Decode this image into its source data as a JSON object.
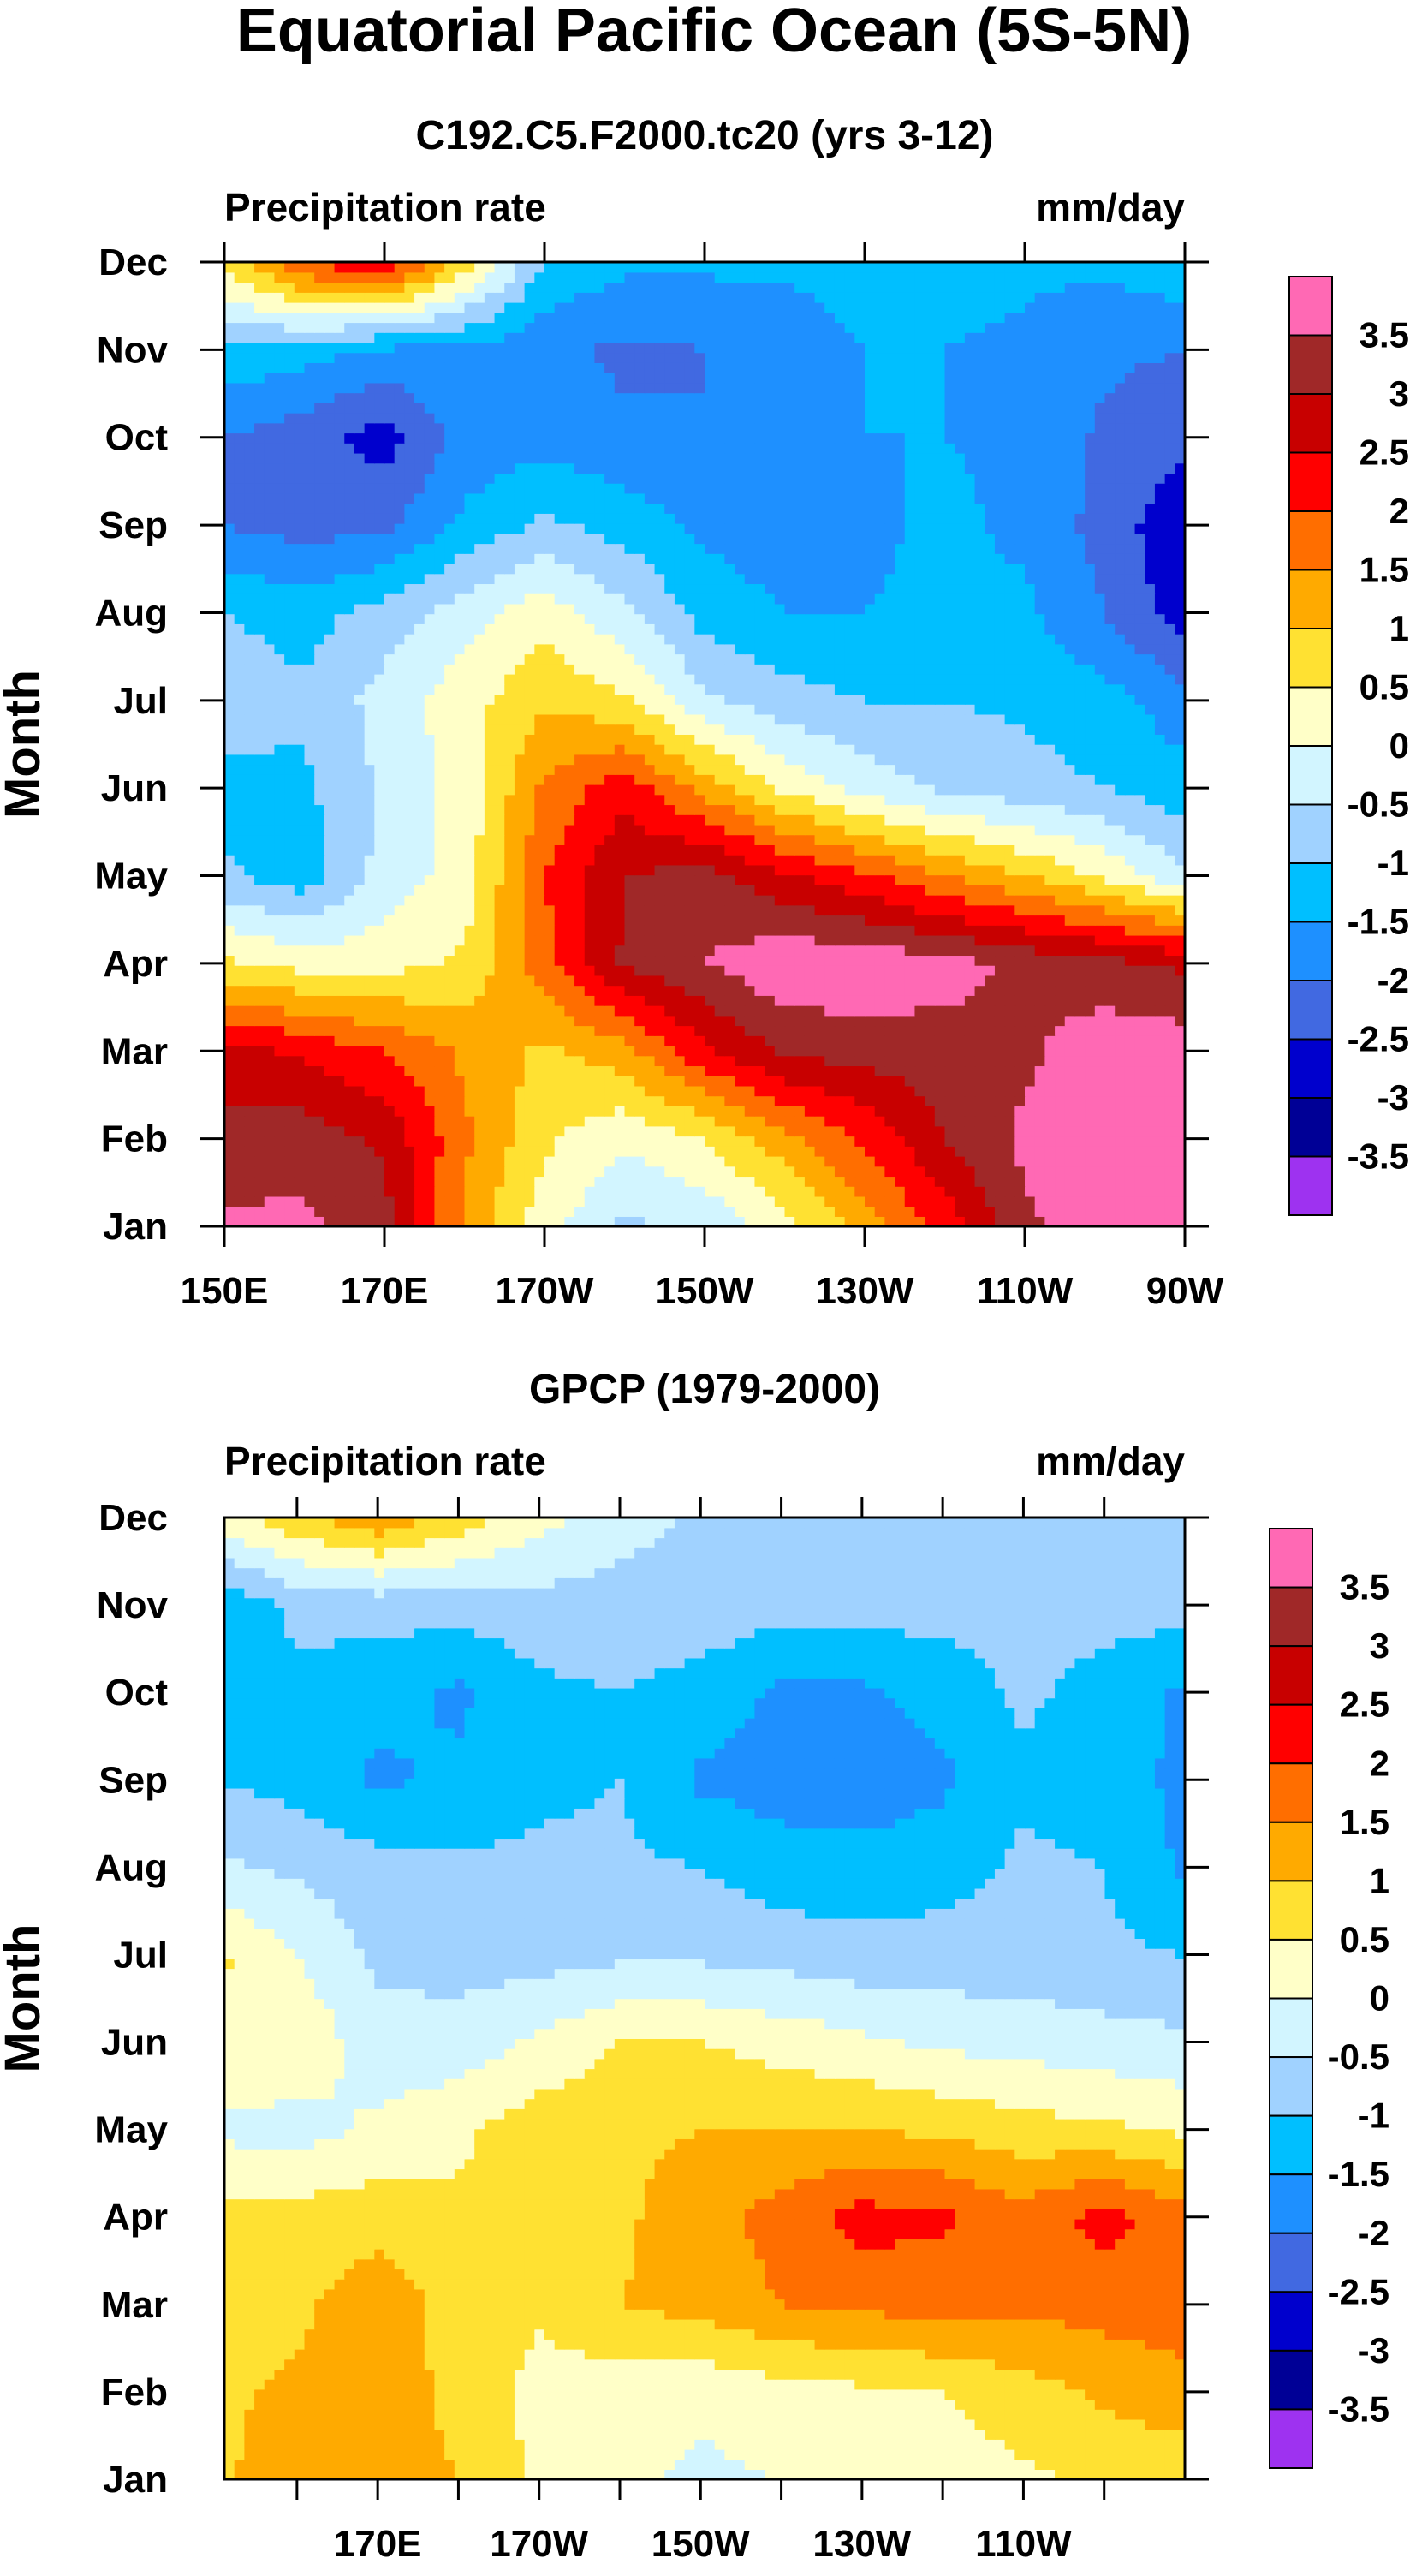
{
  "figure_title": "Equatorial Pacific Ocean (5S-5N)",
  "chart_data": [
    {
      "type": "heatmap",
      "title": "C192.C5.F2000.tc20 (yrs 3-12)",
      "left_label": "Precipitation rate",
      "right_label": "mm/day",
      "xlabel": "",
      "ylabel": "Month",
      "x_ticks": [
        "150E",
        "170E",
        "170W",
        "150W",
        "130W",
        "110W",
        "90W"
      ],
      "x_tick_values": [
        150,
        170,
        190,
        210,
        230,
        250,
        270
      ],
      "xlim": [
        150,
        270
      ],
      "y_ticks": [
        "Jan",
        "Feb",
        "Mar",
        "Apr",
        "May",
        "Jun",
        "Jul",
        "Aug",
        "Sep",
        "Oct",
        "Nov",
        "Dec"
      ],
      "colorbar_labels": [
        "3.5",
        "3",
        "2.5",
        "2",
        "1.5",
        "1",
        "0.5",
        "0",
        "-0.5",
        "-1",
        "-1.5",
        "-2",
        "-2.5",
        "-3",
        "-3.5"
      ],
      "x": [
        150,
        160,
        170,
        180,
        190,
        200,
        210,
        220,
        230,
        240,
        250,
        260,
        270
      ],
      "values": [
        [
          3.6,
          3.6,
          3.2,
          1.4,
          0.2,
          -0.6,
          -0.4,
          0.3,
          1.2,
          2.2,
          3.4,
          3.8,
          3.8
        ],
        [
          3.2,
          3.3,
          2.9,
          1.6,
          0.6,
          0.1,
          0.5,
          1.3,
          2.1,
          3.0,
          3.6,
          3.8,
          3.8
        ],
        [
          2.7,
          2.4,
          2.0,
          1.4,
          0.9,
          1.3,
          2.4,
          3.1,
          3.2,
          3.3,
          3.4,
          3.8,
          3.8
        ],
        [
          0.6,
          0.3,
          0.3,
          0.6,
          1.8,
          3.1,
          3.5,
          3.9,
          3.9,
          3.7,
          3.4,
          3.2,
          2.9
        ],
        [
          -0.9,
          -1.3,
          -0.3,
          0.2,
          2.0,
          3.0,
          3.2,
          2.6,
          2.1,
          1.5,
          1.0,
          0.4,
          -0.4
        ],
        [
          -1.2,
          -1.1,
          -0.4,
          0.2,
          1.6,
          2.3,
          1.3,
          0.4,
          -0.2,
          -0.6,
          -0.8,
          -1.0,
          -1.3
        ],
        [
          -0.7,
          -0.9,
          -0.3,
          0.3,
          0.9,
          0.6,
          -0.4,
          -0.8,
          -1.0,
          -1.0,
          -1.1,
          -1.3,
          -1.8
        ],
        [
          -1.0,
          -1.2,
          -0.8,
          -0.2,
          0.3,
          -0.4,
          -1.2,
          -1.5,
          -1.5,
          -1.4,
          -1.4,
          -2.0,
          -2.8
        ],
        [
          -2.0,
          -2.2,
          -2.1,
          -1.4,
          -0.9,
          -1.2,
          -1.6,
          -1.8,
          -1.6,
          -1.4,
          -1.6,
          -2.2,
          -2.9
        ],
        [
          -2.0,
          -2.3,
          -2.7,
          -1.8,
          -1.7,
          -1.9,
          -2.0,
          -1.8,
          -1.5,
          -1.5,
          -1.6,
          -2.1,
          -2.4
        ],
        [
          -1.1,
          -1.3,
          -1.6,
          -1.6,
          -1.9,
          -2.1,
          -2.0,
          -1.8,
          -1.5,
          -1.5,
          -1.6,
          -1.9,
          -2.0
        ],
        [
          0.7,
          2.0,
          2.5,
          0.8,
          -1.0,
          -1.4,
          -1.4,
          -1.4,
          -1.3,
          -1.3,
          -1.4,
          -1.4,
          -1.1
        ]
      ]
    },
    {
      "type": "heatmap",
      "title": "GPCP (1979-2000)",
      "left_label": "Precipitation rate",
      "right_label": "mm/day",
      "xlabel": "",
      "ylabel": "Month",
      "x_ticks": [
        "170E",
        "170W",
        "150W",
        "130W",
        "110W"
      ],
      "x_tick_values": [
        170,
        190,
        210,
        230,
        250
      ],
      "xlim": [
        151,
        270
      ],
      "y_ticks": [
        "Jan",
        "Feb",
        "Mar",
        "Apr",
        "May",
        "Jun",
        "Jul",
        "Aug",
        "Sep",
        "Oct",
        "Nov",
        "Dec"
      ],
      "colorbar_labels": [
        "3.5",
        "3",
        "2.5",
        "2",
        "1.5",
        "1",
        "0.5",
        "0",
        "-0.5",
        "-1",
        "-1.5",
        "-2",
        "-2.5",
        "-3",
        "-3.5"
      ],
      "x": [
        150,
        160,
        170,
        180,
        190,
        200,
        210,
        220,
        230,
        240,
        250,
        260,
        270
      ],
      "values": [
        [
          0.9,
          1.3,
          1.2,
          1.0,
          0.4,
          0.1,
          -0.1,
          0.0,
          0.1,
          0.2,
          0.4,
          0.6,
          0.7
        ],
        [
          0.9,
          1.1,
          1.2,
          0.9,
          0.3,
          0.2,
          0.1,
          0.3,
          0.4,
          0.5,
          0.8,
          1.1,
          1.3
        ],
        [
          0.8,
          0.9,
          1.3,
          0.8,
          0.6,
          1.0,
          1.2,
          1.5,
          1.6,
          1.7,
          1.6,
          1.7,
          1.8
        ],
        [
          0.6,
          0.7,
          0.8,
          0.6,
          0.6,
          0.9,
          1.3,
          1.7,
          2.2,
          2.1,
          1.7,
          2.2,
          1.7
        ],
        [
          -0.1,
          -0.2,
          0.1,
          0.4,
          0.8,
          0.9,
          1.0,
          1.0,
          1.0,
          0.9,
          0.7,
          0.6,
          0.4
        ],
        [
          0.5,
          0.4,
          -0.3,
          -0.3,
          0.1,
          0.5,
          0.5,
          0.3,
          0.1,
          -0.1,
          -0.2,
          -0.3,
          -0.4
        ],
        [
          0.6,
          0.0,
          -0.6,
          -0.7,
          -0.7,
          -0.6,
          -0.6,
          -0.7,
          -0.8,
          -0.8,
          -0.8,
          -0.9,
          -1.0
        ],
        [
          -0.4,
          -0.6,
          -0.8,
          -0.9,
          -0.9,
          -0.9,
          -1.0,
          -1.3,
          -1.3,
          -1.2,
          -0.9,
          -1.0,
          -1.6
        ],
        [
          -1.0,
          -1.2,
          -1.6,
          -1.4,
          -1.1,
          -1.0,
          -1.6,
          -1.7,
          -1.8,
          -1.6,
          -1.1,
          -1.3,
          -1.6
        ],
        [
          -1.0,
          -1.1,
          -1.3,
          -1.6,
          -1.1,
          -1.0,
          -1.2,
          -1.6,
          -1.6,
          -1.3,
          -0.9,
          -1.2,
          -1.6
        ],
        [
          -1.4,
          -0.9,
          -0.8,
          -0.8,
          -0.7,
          -0.7,
          -0.7,
          -0.8,
          -0.8,
          -0.8,
          -0.8,
          -0.8,
          -0.8
        ],
        [
          0.2,
          0.9,
          1.4,
          0.8,
          0.2,
          -0.3,
          -0.6,
          -0.8,
          -0.9,
          -0.9,
          -0.9,
          -0.9,
          -0.9
        ]
      ]
    }
  ],
  "colormap": {
    "levels": [
      -3.5,
      -3,
      -2.5,
      -2,
      -1.5,
      -1,
      -0.5,
      0,
      0.5,
      1,
      1.5,
      2,
      2.5,
      3,
      3.5
    ],
    "colors": [
      "#9e32f0",
      "#000096",
      "#0000cd",
      "#4169e1",
      "#1e90ff",
      "#00bfff",
      "#a0d2ff",
      "#d2f5ff",
      "#ffffc8",
      "#ffe132",
      "#ffaa00",
      "#ff6e00",
      "#ff0000",
      "#c80000",
      "#a02828",
      "#ff69b4"
    ]
  }
}
